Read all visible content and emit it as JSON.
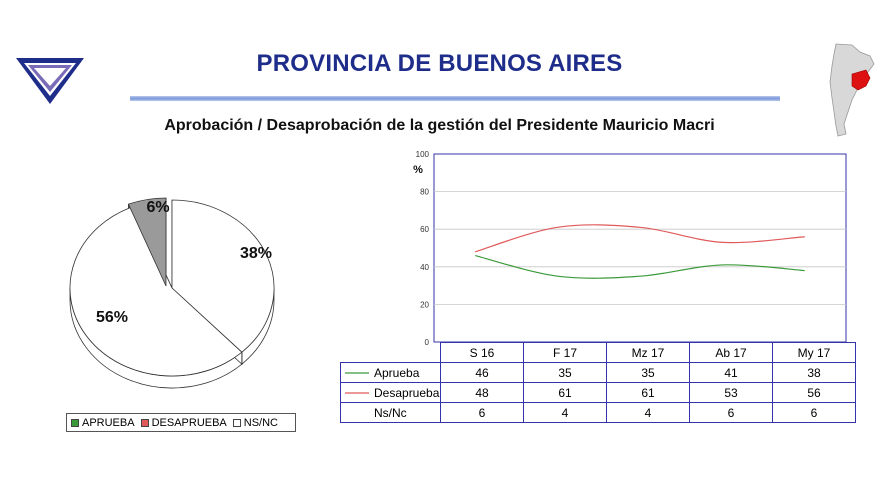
{
  "header": {
    "title": "PROVINCIA DE BUENOS AIRES",
    "subtitle": "Aprobación / Desaprobación de la gestión del Presidente Mauricio Macri"
  },
  "colors": {
    "title": "#1f2d8a",
    "aprueba": "#3a9a3a",
    "desaprueba": "#e05a5a",
    "nsnc": "#ffffff",
    "frame": "#3333aa"
  },
  "icons": {
    "logo": "triangle-logo-icon",
    "map": "argentina-map-icon"
  },
  "chart_data": [
    {
      "type": "pie",
      "labels": [
        "APRUEBA",
        "DESAPRUEBA",
        "NS/NC"
      ],
      "values": [
        38,
        56,
        6
      ],
      "slice_labels": [
        "38%",
        "56%",
        "6%"
      ],
      "legend": [
        "APRUEBA",
        "DESAPRUEBA",
        "NS/NC"
      ],
      "legend_position": "bottom"
    },
    {
      "type": "line",
      "ylabel": "%",
      "ylim": [
        0,
        100
      ],
      "yticks": [
        "0",
        "20",
        "40",
        "60",
        "80",
        "100"
      ],
      "categories": [
        "S 16",
        "F 17",
        "Mz 17",
        "Ab 17",
        "My 17"
      ],
      "series": [
        {
          "name": "Aprueba",
          "values": [
            "46",
            "35",
            "35",
            "41",
            "38"
          ]
        },
        {
          "name": "Desaprueba",
          "values": [
            "48",
            "61",
            "61",
            "53",
            "56"
          ]
        }
      ],
      "table_rows": [
        {
          "name": "Aprueba",
          "values": [
            "46",
            "35",
            "35",
            "41",
            "38"
          ]
        },
        {
          "name": "Desaprueba",
          "values": [
            "48",
            "61",
            "61",
            "53",
            "56"
          ]
        },
        {
          "name": "Ns/Nc",
          "values": [
            "6",
            "4",
            "4",
            "6",
            "6"
          ]
        }
      ],
      "grid": true,
      "legend_position": "data-table"
    }
  ]
}
